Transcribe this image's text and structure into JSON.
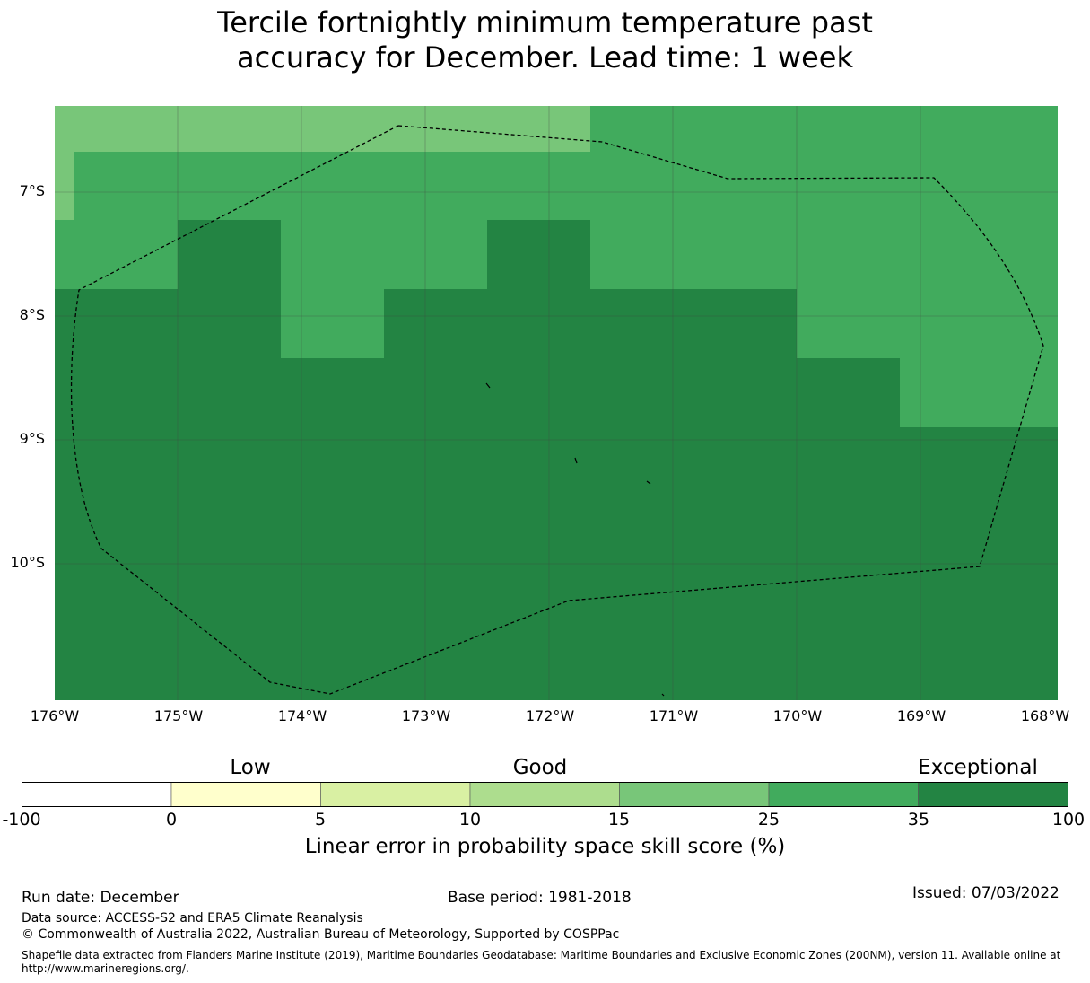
{
  "title": {
    "line1": "Tercile fortnightly minimum temperature past",
    "line2": "accuracy for December. Lead time: 1 week"
  },
  "map": {
    "lat_labels": [
      "7°S",
      "8°S",
      "9°S",
      "10°S"
    ],
    "lon_labels": [
      "176°W",
      "175°W",
      "174°W",
      "173°W",
      "172°W",
      "171°W",
      "170°W",
      "169°W",
      "168°W"
    ],
    "colors": {
      "c15_25": "#78c679",
      "c25_35": "#41ab5d",
      "c35_100": "#238443",
      "boundary": "#000000",
      "grid": "#444444"
    }
  },
  "colorbar": {
    "categories": [
      "Low",
      "Good",
      "Exceptional"
    ],
    "ticks": [
      "-100",
      "0",
      "5",
      "10",
      "15",
      "25",
      "35",
      "100"
    ],
    "colors": [
      "#ffffff",
      "#ffffcc",
      "#d9f0a3",
      "#addd8e",
      "#78c679",
      "#41ab5d",
      "#238443"
    ],
    "label": "Linear error in probability space skill score (%)"
  },
  "footer": {
    "run_date": "Run date: December",
    "base_period": "Base period: 1981-2018",
    "issued": "Issued: 07/03/2022",
    "data_source": "Data source: ACCESS-S2 and ERA5 Climate Reanalysis",
    "copyright": "© Commonwealth of Australia 2022, Australian Bureau of Meteorology, Supported by COSPPac",
    "shapefile": "Shapefile data extracted from Flanders Marine Institute (2019), Maritime Boundaries Geodatabase: Maritime Boundaries and Exclusive Economic Zones (200NM), version 11. Available online at http://www.marineregions.org/."
  }
}
